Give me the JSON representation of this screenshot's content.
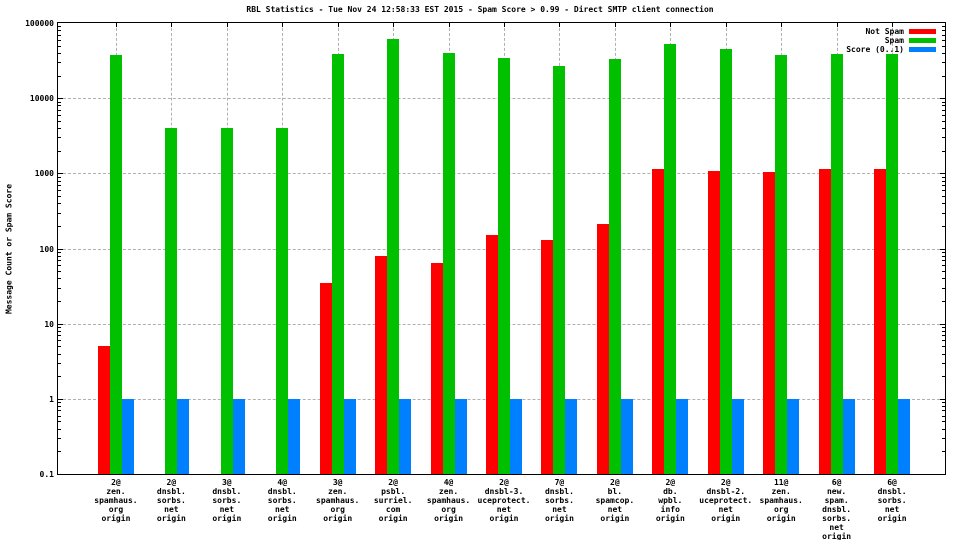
{
  "chart_data": {
    "type": "bar",
    "title": "RBL Statistics - Tue Nov 24 12:58:33 EST 2015 - Spam Score > 0.99 - Direct SMTP client connection",
    "ylabel": "Message Count or Spam Score",
    "xlabel": "",
    "y_scale": "log",
    "ylim": [
      0.1,
      100000
    ],
    "grid": true,
    "legend_position": "top-right-inside",
    "y_ticks": [
      {
        "label": "100000",
        "value": 100000
      },
      {
        "label": "10000",
        "value": 10000
      },
      {
        "label": "1000",
        "value": 1000
      },
      {
        "label": "100",
        "value": 100
      },
      {
        "label": "10",
        "value": 10
      },
      {
        "label": "1",
        "value": 1
      },
      {
        "label": "0.1",
        "value": 0.1
      }
    ],
    "categories": [
      "2@zen.spamhaus.org origin",
      "2@dnsbl.sorbs.net origin",
      "3@dnsbl.sorbs.net origin",
      "4@dnsbl.sorbs.net origin",
      "3@zen.spamhaus.org origin",
      "2@psbl.surriel.com origin",
      "4@zen.spamhaus.org origin",
      "2@dnsbl-3.uceprotect.net origin",
      "7@dnsbl.sorbs.net origin",
      "2@bl.spamcop.net origin",
      "2@db.wpbl.info origin",
      "2@dnsbl-2.uceprotect.net origin",
      "11@zen.spamhaus.org origin",
      "6@new.spam.dnsbl.sorbs.net origin",
      "6@dnsbl.sorbs.net origin"
    ],
    "category_lines": [
      [
        "2@",
        "zen.",
        "spamhaus.",
        "org",
        "origin"
      ],
      [
        "2@",
        "dnsbl.",
        "sorbs.",
        "net",
        "origin"
      ],
      [
        "3@",
        "dnsbl.",
        "sorbs.",
        "net",
        "origin"
      ],
      [
        "4@",
        "dnsbl.",
        "sorbs.",
        "net",
        "origin"
      ],
      [
        "3@",
        "zen.",
        "spamhaus.",
        "org",
        "origin"
      ],
      [
        "2@",
        "psbl.",
        "surriel.",
        "com",
        "origin"
      ],
      [
        "4@",
        "zen.",
        "spamhaus.",
        "org",
        "origin"
      ],
      [
        "2@",
        "dnsbl-3.",
        "uceprotect.",
        "net",
        "origin"
      ],
      [
        "7@",
        "dnsbl.",
        "sorbs.",
        "net",
        "origin"
      ],
      [
        "2@",
        "bl.",
        "spamcop.",
        "net",
        "origin"
      ],
      [
        "2@",
        "db.",
        "wpbl.",
        "info",
        "origin"
      ],
      [
        "2@",
        "dnsbl-2.",
        "uceprotect.",
        "net",
        "origin"
      ],
      [
        "11@",
        "zen.",
        "spamhaus.",
        "org",
        "origin"
      ],
      [
        "6@",
        "new.",
        "spam.",
        "dnsbl.",
        "sorbs.",
        "net",
        "origin"
      ],
      [
        "6@",
        "dnsbl.",
        "sorbs.",
        "net",
        "origin"
      ]
    ],
    "series": [
      {
        "name": "Not Spam",
        "color": "#ff0000",
        "values": [
          5,
          0,
          0,
          0,
          35,
          80,
          65,
          150,
          130,
          210,
          1150,
          1080,
          1030,
          1150,
          1150
        ]
      },
      {
        "name": "Spam",
        "color": "#00c000",
        "values": [
          38000,
          4000,
          4000,
          4000,
          39000,
          62000,
          40000,
          34000,
          27000,
          33000,
          52000,
          45000,
          38000,
          39000,
          39000
        ]
      },
      {
        "name": "Score (0..1)",
        "color": "#0080ff",
        "values": [
          1,
          1,
          1,
          1,
          1,
          1,
          1,
          1,
          1,
          1,
          1,
          1,
          1,
          1,
          1
        ]
      }
    ]
  },
  "colors": {
    "axis": "#000000",
    "grid": "#b0b0b0",
    "background": "#ffffff",
    "not_spam": "#ff0000",
    "spam": "#00c000",
    "score": "#0080ff"
  }
}
